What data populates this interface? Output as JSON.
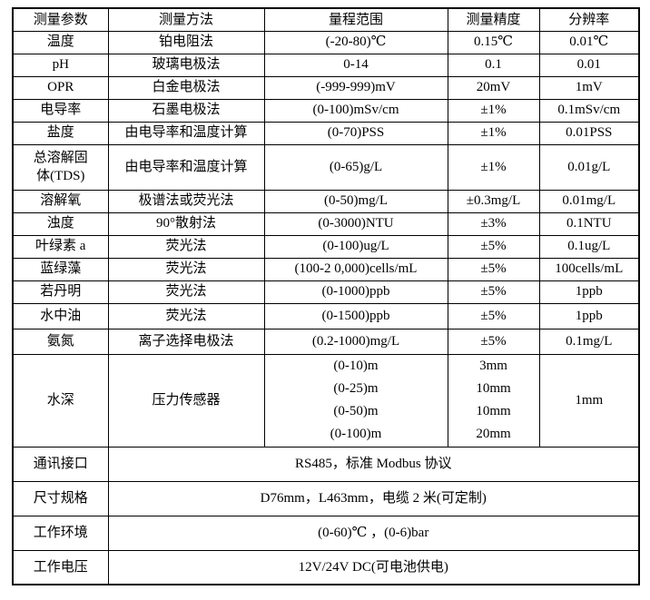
{
  "table": {
    "headers": [
      "测量参数",
      "测量方法",
      "量程范围",
      "测量精度",
      "分辨率"
    ],
    "rows": [
      {
        "param": "温度",
        "method": "铂电阻法",
        "range": "(-20-80)℃",
        "accuracy": "0.15℃",
        "resolution": "0.01℃"
      },
      {
        "param": "pH",
        "method": "玻璃电极法",
        "range": "0-14",
        "accuracy": "0.1",
        "resolution": "0.01"
      },
      {
        "param": "OPR",
        "method": "白金电极法",
        "range": "(-999-999)mV",
        "accuracy": "20mV",
        "resolution": "1mV"
      },
      {
        "param": "电导率",
        "method": "石墨电极法",
        "range": "(0-100)mSv/cm",
        "accuracy": "±1%",
        "resolution": "0.1mSv/cm"
      },
      {
        "param": "盐度",
        "method": "由电导率和温度计算",
        "range": "(0-70)PSS",
        "accuracy": "±1%",
        "resolution": "0.01PSS"
      },
      {
        "param": "总溶解固\n体(TDS)",
        "method": "由电导率和温度计算",
        "range": "(0-65)g/L",
        "accuracy": "±1%",
        "resolution": "0.01g/L"
      },
      {
        "param": "溶解氧",
        "method": "极谱法或荧光法",
        "range": "(0-50)mg/L",
        "accuracy": "±0.3mg/L",
        "resolution": "0.01mg/L"
      },
      {
        "param": "浊度",
        "method": "90°散射法",
        "range": "(0-3000)NTU",
        "accuracy": "±3%",
        "resolution": "0.1NTU"
      },
      {
        "param": "叶绿素 a",
        "method": "荧光法",
        "range": "(0-100)ug/L",
        "accuracy": "±5%",
        "resolution": "0.1ug/L"
      },
      {
        "param": "蓝绿藻",
        "method": "荧光法",
        "range": "(100-2 0,000)cells/mL",
        "accuracy": "±5%",
        "resolution": "100cells/mL"
      },
      {
        "param": "若丹明",
        "method": "荧光法",
        "range": "(0-1000)ppb",
        "accuracy": "±5%",
        "resolution": "1ppb"
      },
      {
        "param": "水中油",
        "method": "荧光法",
        "range": "(0-1500)ppb",
        "accuracy": "±5%",
        "resolution": "1ppb"
      },
      {
        "param": "氨氮",
        "method": "离子选择电极法",
        "range": "(0.2-1000)mg/L",
        "accuracy": "±5%",
        "resolution": "0.1mg/L"
      },
      {
        "param": "水深",
        "method": "压力传感器",
        "range": "(0-10)m\n(0-25)m\n(0-50)m\n(0-100)m",
        "accuracy": "3mm\n10mm\n10mm\n20mm",
        "resolution": "1mm"
      }
    ],
    "footer_rows": [
      {
        "label": "通讯接口",
        "value": "RS485，标准 Modbus 协议"
      },
      {
        "label": "尺寸规格",
        "value": "D76mm，L463mm，电缆 2 米(可定制)"
      },
      {
        "label": "工作环境",
        "value": "(0-60)℃ ，(0-6)bar"
      },
      {
        "label": "工作电压",
        "value": "12V/24V DC(可电池供电)"
      }
    ],
    "colors": {
      "border": "#000000",
      "text": "#000000",
      "background": "#ffffff"
    }
  }
}
